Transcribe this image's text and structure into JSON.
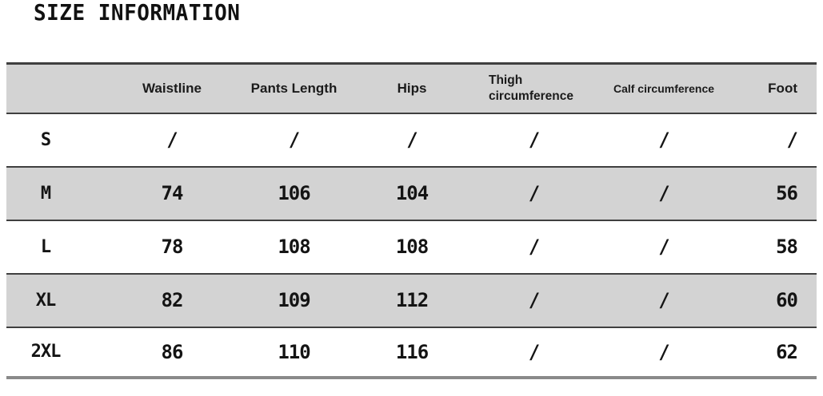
{
  "page": {
    "title": "SIZE INFORMATION"
  },
  "table": {
    "columns": [
      "",
      "Waistline",
      "Pants Length",
      "Hips",
      "Thigh circumference",
      "Calf circumference",
      "Foot"
    ],
    "rows": [
      {
        "size": "S",
        "values": [
          "/",
          "/",
          "/",
          "/",
          "/",
          "/"
        ]
      },
      {
        "size": "M",
        "values": [
          "74",
          "106",
          "104",
          "/",
          "/",
          "56"
        ]
      },
      {
        "size": "L",
        "values": [
          "78",
          "108",
          "108",
          "/",
          "/",
          "58"
        ]
      },
      {
        "size": "XL",
        "values": [
          "82",
          "109",
          "112",
          "/",
          "/",
          "60"
        ]
      },
      {
        "size": "2XL",
        "values": [
          "86",
          "110",
          "116",
          "/",
          "/",
          "62"
        ]
      }
    ]
  },
  "chart_data": {
    "type": "table",
    "title": "SIZE INFORMATION",
    "columns": [
      "",
      "Waistline",
      "Pants Length",
      "Hips",
      "Thigh circumference",
      "Calf circumference",
      "Foot"
    ],
    "rows": [
      [
        "S",
        "/",
        "/",
        "/",
        "/",
        "/",
        "/"
      ],
      [
        "M",
        "74",
        "106",
        "104",
        "/",
        "/",
        "56"
      ],
      [
        "L",
        "78",
        "108",
        "108",
        "/",
        "/",
        "58"
      ],
      [
        "XL",
        "82",
        "109",
        "112",
        "/",
        "/",
        "60"
      ],
      [
        "2XL",
        "86",
        "110",
        "116",
        "/",
        "/",
        "62"
      ]
    ],
    "layout_hints": {
      "zebra_striping": true,
      "missing_value_symbol": "/",
      "header_background": "#d3d3d3"
    }
  },
  "colors": {
    "background": "#ffffff",
    "band_gray": "#d3d3d3",
    "rule_dark": "#3f3f3f",
    "rule_bottom": "#8a8a8a",
    "text": "#141414"
  }
}
